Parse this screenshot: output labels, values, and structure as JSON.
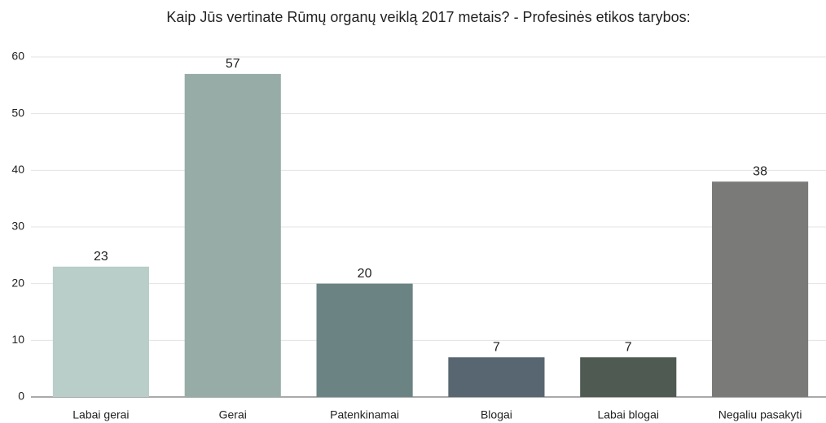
{
  "chart_data": {
    "type": "bar",
    "title": "Kaip Jūs vertinate Rūmų organų veiklą 2017 metais? - Profesinės etikos tarybos:",
    "categories": [
      "Labai gerai",
      "Gerai",
      "Patenkinamai",
      "Blogai",
      "Labai blogai",
      "Negaliu pasakyti"
    ],
    "values": [
      23,
      57,
      20,
      7,
      7,
      38
    ],
    "colors": [
      "#b9cdc9",
      "#97aca7",
      "#6b8383",
      "#576670",
      "#4f5a52",
      "#7a7a78"
    ],
    "ylim": [
      0,
      60
    ],
    "yticks": [
      0,
      10,
      20,
      30,
      40,
      50,
      60
    ],
    "grid": true
  }
}
